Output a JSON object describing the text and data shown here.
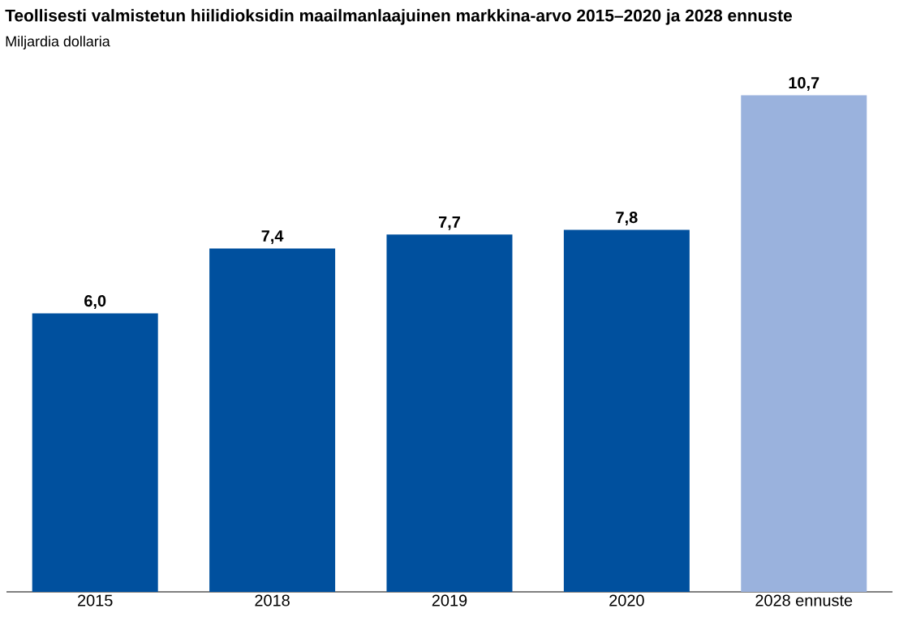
{
  "chart_data": {
    "type": "bar",
    "title": "Teollisesti valmistetun hiilidioksidin maailmanlaajuinen markkina-arvo 2015–2020 ja 2028 ennuste",
    "subtitle": "Miljardia dollaria",
    "categories": [
      "2015",
      "2018",
      "2019",
      "2020",
      "2028 ennuste"
    ],
    "values": [
      6.0,
      7.4,
      7.7,
      7.8,
      10.7
    ],
    "colors": [
      "#00509e",
      "#00509e",
      "#00509e",
      "#00509e",
      "#9ab2dd"
    ],
    "value_labels": [
      "6,0",
      "7,4",
      "7,7",
      "7,8",
      "10,7"
    ]
  }
}
